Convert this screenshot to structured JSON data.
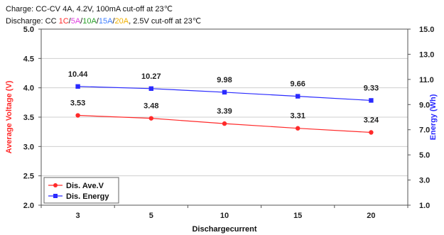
{
  "header": {
    "charge_line": "Charge: CC-CV 4A, 4.2V, 100mA cut-off at 23℃",
    "discharge_prefix": "Discharge: CC ",
    "rates": [
      {
        "label": "1C",
        "color": "#ff2a2a"
      },
      {
        "label": "5A",
        "color": "#e040e0"
      },
      {
        "label": "10A",
        "color": "#2aa02a"
      },
      {
        "label": "15A",
        "color": "#3f7fff"
      },
      {
        "label": "20A",
        "color": "#f0b000"
      }
    ],
    "rate_separator": "/",
    "discharge_suffix": ", 2.5V cut-off at 23℃"
  },
  "chart_data": {
    "type": "line",
    "categories": [
      "3",
      "5",
      "10",
      "15",
      "20"
    ],
    "xlabel": "Dischargecurrent",
    "ylabel_left": "Average Voltage (V)",
    "ylabel_right": "Energy (Wh)",
    "ylim_left": [
      2.0,
      5.0
    ],
    "yticks_left": [
      "2.0",
      "2.5",
      "3.0",
      "3.5",
      "4.0",
      "4.5",
      "5.0"
    ],
    "ylim_right": [
      1.0,
      15.0
    ],
    "yticks_right": [
      "1.0",
      "3.0",
      "5.0",
      "7.0",
      "9.0",
      "11.0",
      "13.0",
      "15.0"
    ],
    "grid": true,
    "legend_position": "bottom-left",
    "series": [
      {
        "name": "Dis. Ave.V",
        "axis": "left",
        "color": "#ff2a2a",
        "marker": "circle",
        "values": [
          3.53,
          3.48,
          3.39,
          3.31,
          3.24
        ],
        "labels": [
          "3.53",
          "3.48",
          "3.39",
          "3.31",
          "3.24"
        ]
      },
      {
        "name": "Dis. Energy",
        "axis": "right",
        "color": "#2a2aff",
        "marker": "square",
        "values": [
          10.44,
          10.27,
          9.98,
          9.66,
          9.33
        ],
        "labels": [
          "10.44",
          "10.27",
          "9.98",
          "9.66",
          "9.33"
        ]
      }
    ]
  }
}
